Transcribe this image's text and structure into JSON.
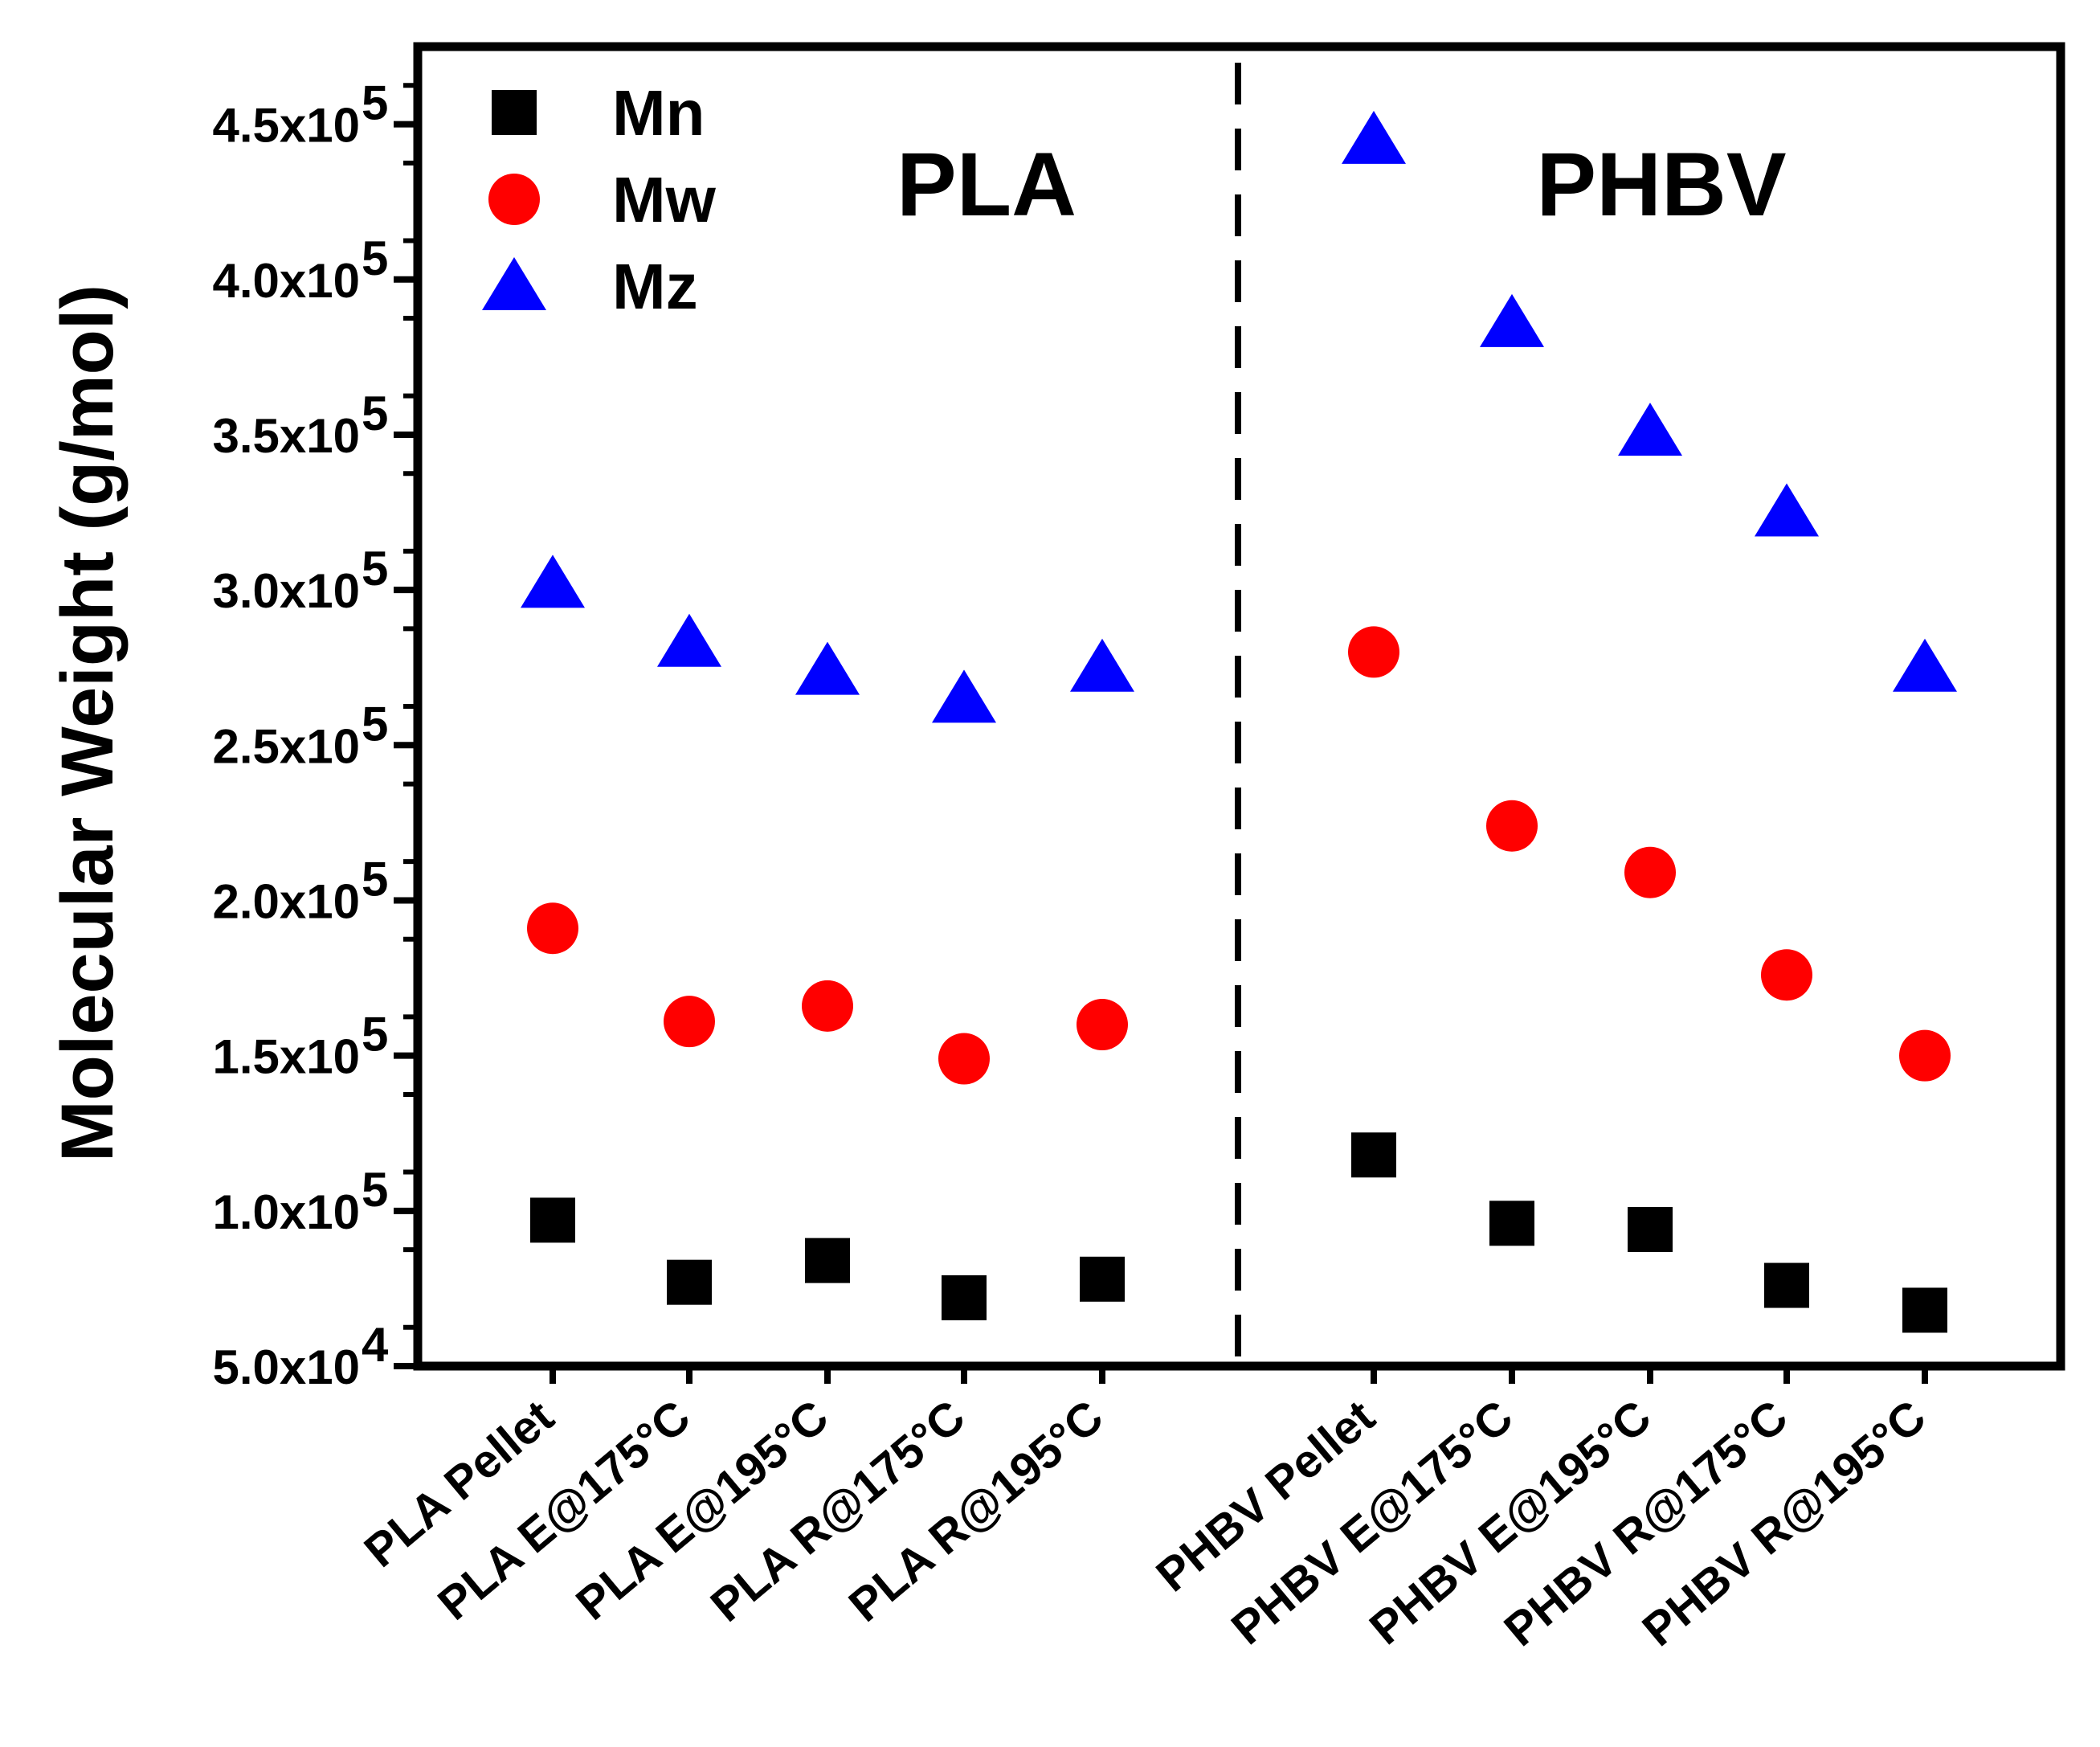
{
  "chart_data": {
    "type": "scatter",
    "title": "",
    "xlabel": "",
    "ylabel": "Molecular Weight (g/mol)",
    "ylim": [
      50000,
      475000
    ],
    "yticks": [
      {
        "value": 50000,
        "mant": "5.0x10",
        "exp": "4"
      },
      {
        "value": 100000,
        "mant": "1.0x10",
        "exp": "5"
      },
      {
        "value": 150000,
        "mant": "1.5x10",
        "exp": "5"
      },
      {
        "value": 200000,
        "mant": "2.0x10",
        "exp": "5"
      },
      {
        "value": 250000,
        "mant": "2.5x10",
        "exp": "5"
      },
      {
        "value": 300000,
        "mant": "3.0x10",
        "exp": "5"
      },
      {
        "value": 350000,
        "mant": "3.5x10",
        "exp": "5"
      },
      {
        "value": 400000,
        "mant": "4.0x10",
        "exp": "5"
      },
      {
        "value": 450000,
        "mant": "4.5x10",
        "exp": "5"
      }
    ],
    "categories": [
      "PLA Pellet",
      "PLA E@175°C",
      "PLA E@195°C",
      "PLA R@175°C",
      "PLA R@195°C",
      "PHBV Pellet",
      "PHBV E@175°C",
      "PHBV E@195°C",
      "PHBV R@175°C",
      "PHBV R@195°C"
    ],
    "groups": [
      {
        "label": "PLA",
        "from": 0,
        "to": 4
      },
      {
        "label": "PHBV",
        "from": 5,
        "to": 9
      }
    ],
    "divider": "dashed line between PLA and PHBV groups",
    "legend_position": "top-left",
    "series": [
      {
        "name": "Mn",
        "marker": "square",
        "color": "#000000",
        "values": [
          97000,
          77000,
          84000,
          72000,
          78000,
          118000,
          96000,
          94000,
          76000,
          68000
        ]
      },
      {
        "name": "Mw",
        "marker": "circle",
        "color": "#ff0000",
        "values": [
          191000,
          161000,
          166000,
          149000,
          160000,
          280000,
          224000,
          209000,
          176000,
          150000
        ]
      },
      {
        "name": "Mz",
        "marker": "triangle",
        "color": "#0000ff",
        "values": [
          302000,
          283000,
          274000,
          265000,
          275000,
          445000,
          386000,
          351000,
          325000,
          275000
        ]
      }
    ]
  }
}
